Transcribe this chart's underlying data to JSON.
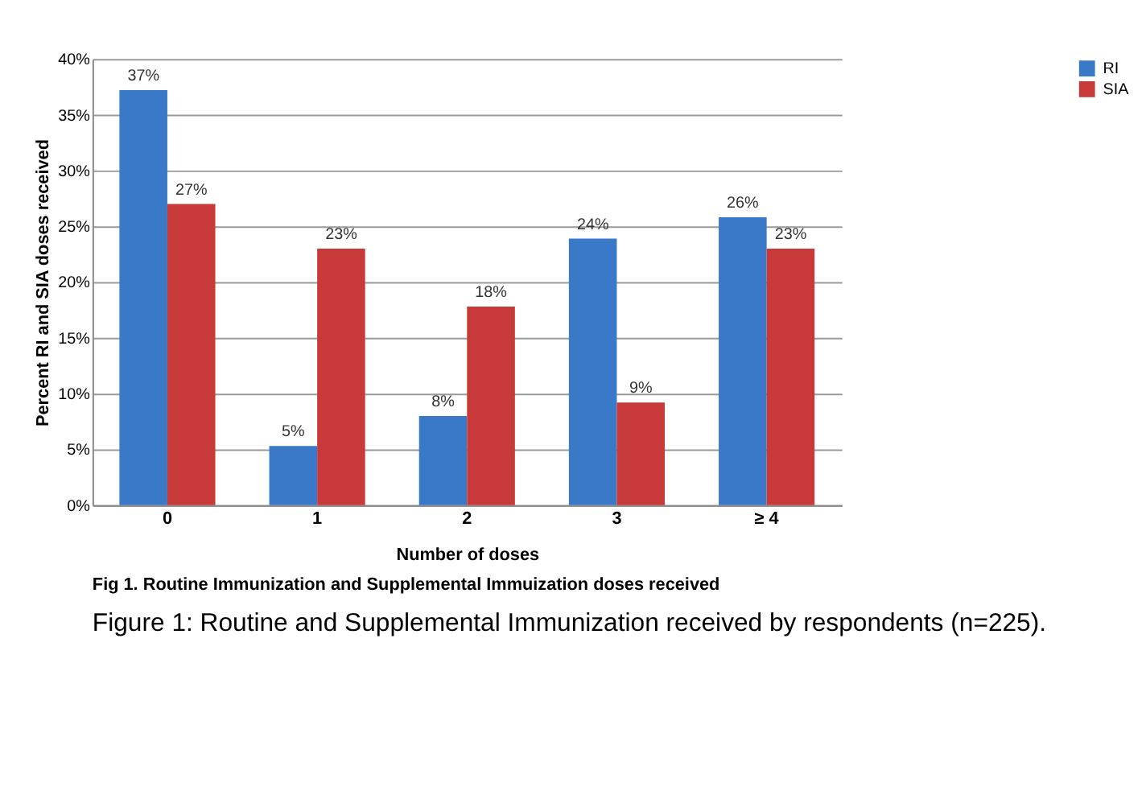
{
  "chart_data": {
    "type": "bar",
    "xlabel": "Number of doses",
    "ylabel": "Percent RI and SIA doses received",
    "categories": [
      "0",
      "1",
      "2",
      "3",
      "≥ 4"
    ],
    "series": [
      {
        "name": "RI",
        "color": "#3a78c8",
        "values": [
          37.2,
          5.3,
          8.0,
          23.9,
          25.8
        ],
        "value_labels": [
          "37%",
          "5%",
          "8%",
          "24%",
          "26%"
        ]
      },
      {
        "name": "SIA",
        "color": "#c83a3a",
        "values": [
          27.0,
          23.0,
          17.8,
          9.2,
          23.0
        ],
        "value_labels": [
          "27%",
          "23%",
          "18%",
          "9%",
          "23%"
        ]
      }
    ],
    "ylim": [
      0,
      40
    ],
    "yticks": [
      {
        "value": 0,
        "label": "0%"
      },
      {
        "value": 5,
        "label": "5%"
      },
      {
        "value": 10,
        "label": "10%"
      },
      {
        "value": 15,
        "label": "15%"
      },
      {
        "value": 20,
        "label": "20%"
      },
      {
        "value": 25,
        "label": "25%"
      },
      {
        "value": 30,
        "label": "30%"
      },
      {
        "value": 35,
        "label": "35%"
      },
      {
        "value": 40,
        "label": "40%"
      }
    ],
    "grid": "y",
    "legend": "right",
    "annotations": [
      "Fig 1. Routine Immunization and Supplemental Immuization doses received",
      "Figure 1: Routine and Supplemental Immunization received by respondents (n=225)."
    ]
  }
}
